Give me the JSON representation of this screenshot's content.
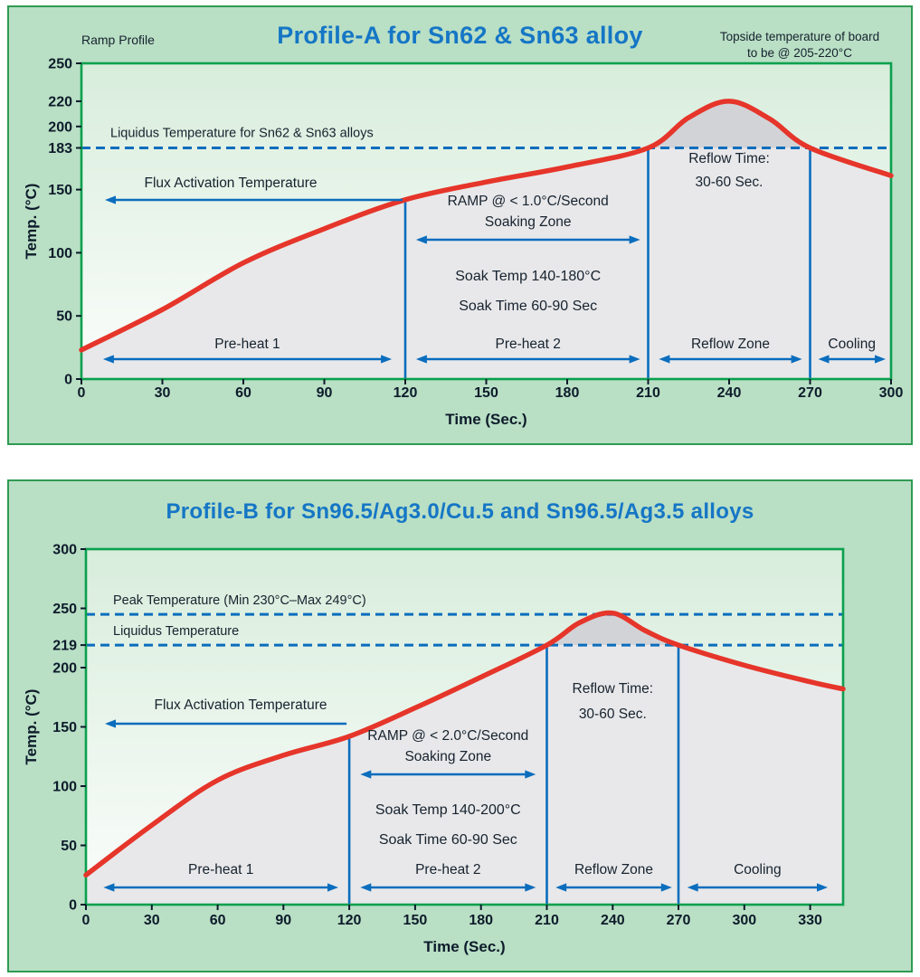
{
  "colors": {
    "panel_background": "#b9dfc5",
    "panel_border": "#2f9b52",
    "plot_frame": "#0aa04e",
    "plot_bg_top": "#d8eddc",
    "plot_bg_bottom": "#fbfdfb",
    "under_curve_fill": "#e8e8ea",
    "reflow_hump_fill": "#d2d3d7",
    "curve_red": "#e6352a",
    "accent_blue": "#0a6dbd",
    "title_blue": "#1576c5",
    "text_dark": "#16222e",
    "tick_text": "#0d1b2a"
  },
  "panels": [
    {
      "corner_label": "Ramp Profile",
      "title": "Profile-A for Sn62 & Sn63 alloy",
      "subtitle_lines": [
        "Topside temperature of board",
        "to be @ 205-220°C"
      ]
    },
    {
      "title": "Profile-B for Sn96.5/Ag3.0/Cu.5 and Sn96.5/Ag3.5 alloys"
    }
  ],
  "chart_data": [
    {
      "type": "line",
      "title": "Profile-A for Sn62 & Sn63 alloy",
      "xlabel": "Time (Sec.)",
      "ylabel": "Temp. (°C)",
      "xlim": [
        0,
        300
      ],
      "ylim": [
        0,
        250
      ],
      "grid": false,
      "legend": "none",
      "x_ticks": [
        0,
        30,
        60,
        90,
        120,
        150,
        180,
        210,
        240,
        270,
        300
      ],
      "y_ticks": [
        0,
        50,
        100,
        150,
        183,
        200,
        220,
        250
      ],
      "series": [
        {
          "name": "temperature-ramp-profile",
          "x": [
            0,
            30,
            60,
            90,
            120,
            150,
            180,
            210,
            225,
            240,
            255,
            270,
            300
          ],
          "y": [
            23,
            55,
            92,
            119,
            142,
            156,
            168,
            183,
            207,
            220,
            206,
            183,
            161
          ]
        }
      ],
      "reference_lines": [
        {
          "value": 183,
          "label": "Liquidus Temperature for Sn62 & Sn63 alloys"
        }
      ],
      "zone_boundaries": [
        120,
        210,
        270
      ],
      "zones": [
        {
          "label": "Pre-heat 1",
          "from": 8,
          "to": 115
        },
        {
          "label": "Pre-heat 2",
          "from": 124,
          "to": 207
        },
        {
          "label": "Reflow Zone",
          "from": 214,
          "to": 267
        },
        {
          "label": "Cooling",
          "from": 273,
          "to": 298
        }
      ],
      "annotations": {
        "flux": "Flux Activation Temperature",
        "ramp": [
          "RAMP @ < 1.0°C/Second",
          "Soaking Zone"
        ],
        "soak": [
          "Soak Temp 140-180°C",
          "Soak Time 60-90 Sec"
        ],
        "reflow": [
          "Reflow Time:",
          "30-60 Sec."
        ]
      }
    },
    {
      "type": "line",
      "title": "Profile-B for Sn96.5/Ag3.0/Cu.5 and Sn96.5/Ag3.5 alloys",
      "xlabel": "Time (Sec.)",
      "ylabel": "Temp. (°C)",
      "xlim": [
        0,
        345
      ],
      "ylim": [
        0,
        300
      ],
      "grid": false,
      "legend": "none",
      "x_ticks": [
        0,
        30,
        60,
        90,
        120,
        150,
        180,
        210,
        240,
        270,
        300,
        330
      ],
      "y_ticks": [
        0,
        50,
        100,
        150,
        200,
        219,
        250,
        300
      ],
      "series": [
        {
          "name": "temperature-ramp-profile",
          "x": [
            0,
            30,
            60,
            90,
            120,
            150,
            180,
            210,
            225,
            240,
            255,
            270,
            300,
            330,
            345
          ],
          "y": [
            25,
            67,
            105,
            126,
            142,
            166,
            192,
            219,
            238,
            246,
            231,
            219,
            202,
            188,
            182
          ]
        }
      ],
      "reference_lines": [
        {
          "value": 245,
          "label": "Peak Temperature (Min 230°C–Max 249°C)"
        },
        {
          "value": 219,
          "label": "Liquidus Temperature"
        }
      ],
      "zone_boundaries": [
        120,
        210,
        270
      ],
      "zones": [
        {
          "label": "Pre-heat 1",
          "from": 8,
          "to": 115
        },
        {
          "label": "Pre-heat 2",
          "from": 125,
          "to": 205
        },
        {
          "label": "Reflow Zone",
          "from": 214,
          "to": 267
        },
        {
          "label": "Cooling",
          "from": 274,
          "to": 338
        }
      ],
      "annotations": {
        "flux": "Flux Activation Temperature",
        "ramp": [
          "RAMP @ < 2.0°C/Second",
          "Soaking Zone"
        ],
        "soak": [
          "Soak Temp 140-200°C",
          "Soak Time 60-90 Sec"
        ],
        "reflow": [
          "Reflow Time:",
          "30-60 Sec."
        ]
      }
    }
  ]
}
